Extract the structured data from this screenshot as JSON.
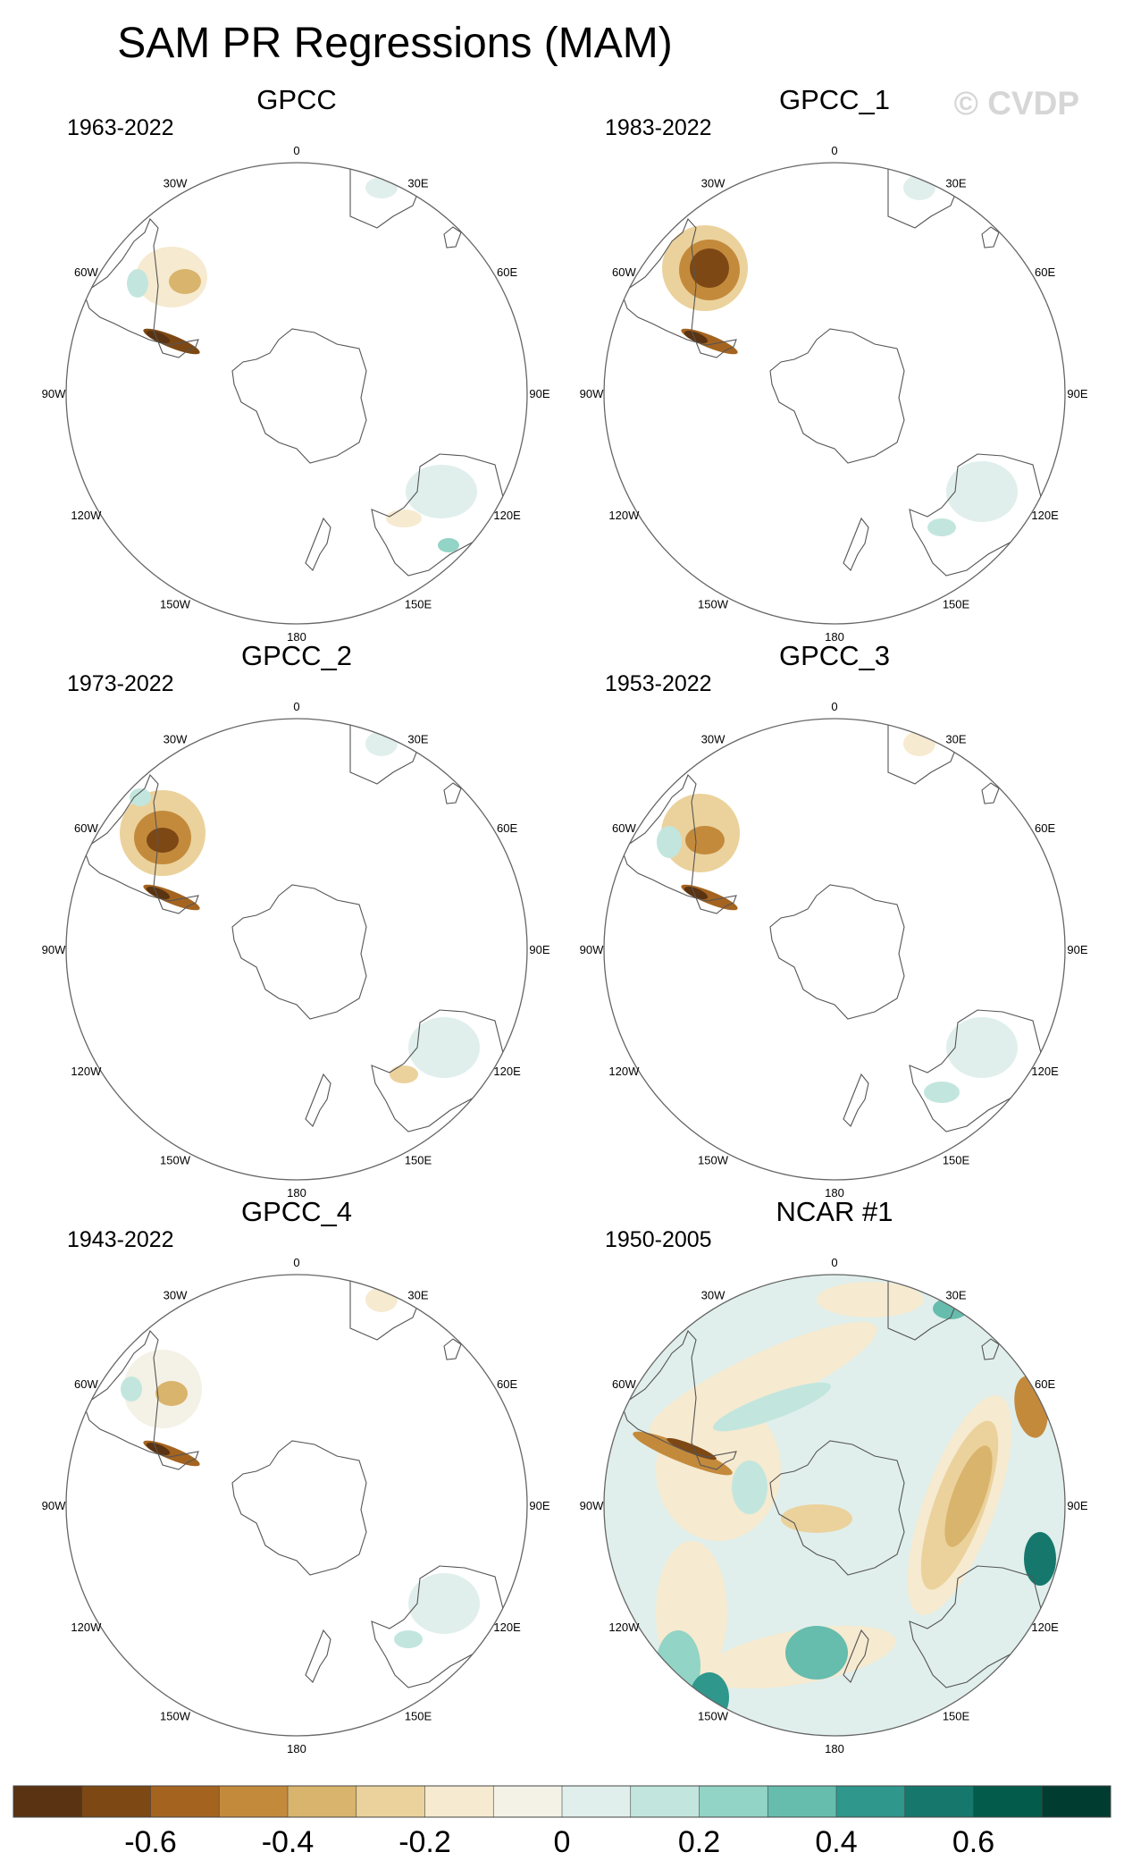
{
  "figure": {
    "title": "SAM PR Regressions (MAM)",
    "watermark": "© CVDP"
  },
  "chart_data": {
    "type": "heatmap",
    "projection": "south polar stereographic",
    "lon_labels": [
      "0",
      "30E",
      "60E",
      "90E",
      "120E",
      "150E",
      "180",
      "150W",
      "120W",
      "90W",
      "60W",
      "30W"
    ],
    "panels": [
      {
        "title": "GPCC",
        "period": "1963-2022"
      },
      {
        "title": "GPCC_1",
        "period": "1983-2022"
      },
      {
        "title": "GPCC_2",
        "period": "1973-2022"
      },
      {
        "title": "GPCC_3",
        "period": "1953-2022"
      },
      {
        "title": "GPCC_4",
        "period": "1943-2022"
      },
      {
        "title": "NCAR #1",
        "period": "1950-2005"
      }
    ],
    "colorbar": {
      "colors": [
        "#5a3312",
        "#7d4814",
        "#a46420",
        "#c48a3c",
        "#d9b46c",
        "#ebd29c",
        "#f6ead0",
        "#f4f1e6",
        "#e0efec",
        "#c2e6de",
        "#92d4c6",
        "#66bcad",
        "#2f978c",
        "#16786c",
        "#035b4c",
        "#003c30"
      ],
      "tick_labels": [
        "-0.6",
        "-0.4",
        "-0.2",
        "0",
        "0.2",
        "0.4",
        "0.6"
      ]
    }
  }
}
